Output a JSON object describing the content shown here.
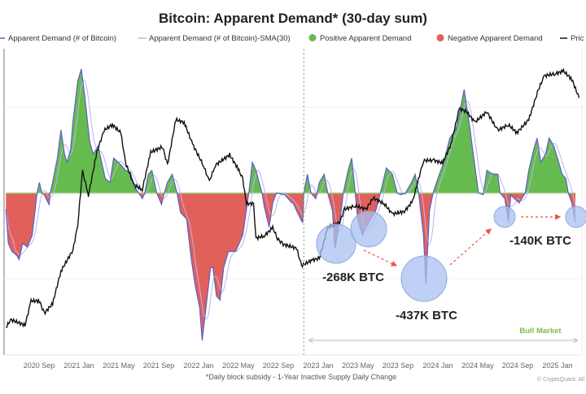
{
  "chart_data": {
    "type": "area",
    "title": "Bitcoin: Apparent Demand* (30-day sum)",
    "footnote": "*Daily block subsidy - 1-Year Inactive Supply Daily Change",
    "credit": "© CryptoQuant. All",
    "xlabel": "",
    "ylabel": "",
    "x_unit": "decimal year",
    "demand_unit": "K BTC",
    "xlim": [
      2020.39,
      2025.2
    ],
    "ylim": [
      -780,
      695
    ],
    "price_range": [
      7200,
      124000
    ],
    "price_scale": "log",
    "grid": true,
    "legend_placement": "top",
    "legend": [
      {
        "label": "Apparent Demand (# of Bitcoin)",
        "marker": "line",
        "color": "#5b5fc7"
      },
      {
        "label": "Apparent Demand (# of Bitcoin)-SMA(30)",
        "marker": "line",
        "color": "#b9b6e6"
      },
      {
        "label": "Positive Apparent Demand",
        "marker": "dot",
        "color": "#66bb4f"
      },
      {
        "label": "Negative Apparent Demand",
        "marker": "dot",
        "color": "#e2605a"
      },
      {
        "label": "Pric",
        "marker": "line",
        "color": "#111111"
      }
    ],
    "x_ticks": [
      {
        "label": "2020 Sep",
        "value": 2020.667
      },
      {
        "label": "2021 Jan",
        "value": 2021.0
      },
      {
        "label": "2021 May",
        "value": 2021.333
      },
      {
        "label": "2021 Sep",
        "value": 2021.667
      },
      {
        "label": "2022 Jan",
        "value": 2022.0
      },
      {
        "label": "2022 May",
        "value": 2022.333
      },
      {
        "label": "2022 Sep",
        "value": 2022.667
      },
      {
        "label": "2023 Jan",
        "value": 2023.0
      },
      {
        "label": "2023 May",
        "value": 2023.333
      },
      {
        "label": "2023 Sep",
        "value": 2023.667
      },
      {
        "label": "2024 Jan",
        "value": 2024.0
      },
      {
        "label": "2024 May",
        "value": 2024.333
      },
      {
        "label": "2024 Sep",
        "value": 2024.667
      },
      {
        "label": "2025 Jan",
        "value": 2025.0
      }
    ],
    "demand": [
      [
        2020.39,
        -78
      ],
      [
        2020.41,
        -242
      ],
      [
        2020.44,
        -281
      ],
      [
        2020.48,
        -300
      ],
      [
        2020.5,
        -320
      ],
      [
        2020.53,
        -242
      ],
      [
        2020.57,
        -261
      ],
      [
        2020.61,
        -203
      ],
      [
        2020.65,
        0
      ],
      [
        2020.67,
        51
      ],
      [
        2020.69,
        0
      ],
      [
        2020.71,
        -8
      ],
      [
        2020.75,
        -55
      ],
      [
        2020.76,
        0
      ],
      [
        2020.78,
        51
      ],
      [
        2020.82,
        168
      ],
      [
        2020.85,
        304
      ],
      [
        2020.88,
        187
      ],
      [
        2020.9,
        148
      ],
      [
        2020.93,
        207
      ],
      [
        2020.95,
        343
      ],
      [
        2020.99,
        538
      ],
      [
        2021.02,
        597
      ],
      [
        2021.05,
        460
      ],
      [
        2021.09,
        246
      ],
      [
        2021.12,
        187
      ],
      [
        2021.16,
        226
      ],
      [
        2021.19,
        148
      ],
      [
        2021.22,
        70
      ],
      [
        2021.26,
        51
      ],
      [
        2021.29,
        168
      ],
      [
        2021.33,
        148
      ],
      [
        2021.36,
        129
      ],
      [
        2021.39,
        109
      ],
      [
        2021.43,
        101
      ],
      [
        2021.46,
        31
      ],
      [
        2021.5,
        0
      ],
      [
        2021.53,
        -27
      ],
      [
        2021.55,
        0
      ],
      [
        2021.58,
        90
      ],
      [
        2021.61,
        109
      ],
      [
        2021.65,
        0
      ],
      [
        2021.67,
        -27
      ],
      [
        2021.69,
        -55
      ],
      [
        2021.71,
        -8
      ],
      [
        2021.74,
        51
      ],
      [
        2021.78,
        90
      ],
      [
        2021.82,
        0
      ],
      [
        2021.85,
        -94
      ],
      [
        2021.9,
        -125
      ],
      [
        2021.94,
        -320
      ],
      [
        2021.97,
        -437
      ],
      [
        2022.01,
        -554
      ],
      [
        2022.03,
        -710
      ],
      [
        2022.05,
        -612
      ],
      [
        2022.1,
        -359
      ],
      [
        2022.12,
        -359
      ],
      [
        2022.15,
        -495
      ],
      [
        2022.18,
        -515
      ],
      [
        2022.21,
        -359
      ],
      [
        2022.25,
        -281
      ],
      [
        2022.31,
        -281
      ],
      [
        2022.37,
        -203
      ],
      [
        2022.42,
        0
      ],
      [
        2022.45,
        148
      ],
      [
        2022.48,
        109
      ],
      [
        2022.53,
        0
      ],
      [
        2022.55,
        -66
      ],
      [
        2022.59,
        -164
      ],
      [
        2022.62,
        -47
      ],
      [
        2022.65,
        0
      ],
      [
        2022.72,
        -8
      ],
      [
        2022.78,
        -47
      ],
      [
        2022.79,
        -47
      ],
      [
        2022.82,
        -86
      ],
      [
        2022.87,
        -144
      ],
      [
        2022.88,
        0
      ],
      [
        2022.91,
        90
      ],
      [
        2022.94,
        0
      ],
      [
        2022.98,
        -27
      ],
      [
        2023.01,
        51
      ],
      [
        2023.05,
        90
      ],
      [
        2023.08,
        0
      ],
      [
        2023.12,
        -86
      ],
      [
        2023.14,
        -268
      ],
      [
        2023.16,
        -203
      ],
      [
        2023.18,
        -144
      ],
      [
        2023.21,
        0
      ],
      [
        2023.25,
        109
      ],
      [
        2023.28,
        168
      ],
      [
        2023.31,
        0
      ],
      [
        2023.33,
        -125
      ],
      [
        2023.37,
        -203
      ],
      [
        2023.4,
        -164
      ],
      [
        2023.44,
        -125
      ],
      [
        2023.48,
        -86
      ],
      [
        2023.52,
        0
      ],
      [
        2023.57,
        121
      ],
      [
        2023.62,
        90
      ],
      [
        2023.66,
        0
      ],
      [
        2023.69,
        -8
      ],
      [
        2023.73,
        0
      ],
      [
        2023.78,
        51
      ],
      [
        2023.81,
        90
      ],
      [
        2023.84,
        0
      ],
      [
        2023.88,
        -203
      ],
      [
        2023.9,
        -437
      ],
      [
        2023.93,
        -86
      ],
      [
        2023.96,
        0
      ],
      [
        2024.0,
        70
      ],
      [
        2024.05,
        148
      ],
      [
        2024.1,
        265
      ],
      [
        2024.15,
        304
      ],
      [
        2024.18,
        382
      ],
      [
        2024.22,
        499
      ],
      [
        2024.24,
        421
      ],
      [
        2024.27,
        304
      ],
      [
        2024.3,
        168
      ],
      [
        2024.34,
        0
      ],
      [
        2024.38,
        -8
      ],
      [
        2024.41,
        109
      ],
      [
        2024.46,
        90
      ],
      [
        2024.5,
        90
      ],
      [
        2024.52,
        0
      ],
      [
        2024.56,
        -27
      ],
      [
        2024.59,
        -140
      ],
      [
        2024.61,
        -8
      ],
      [
        2024.64,
        -27
      ],
      [
        2024.68,
        -47
      ],
      [
        2024.73,
        0
      ],
      [
        2024.76,
        109
      ],
      [
        2024.8,
        207
      ],
      [
        2024.83,
        265
      ],
      [
        2024.86,
        148
      ],
      [
        2024.9,
        187
      ],
      [
        2024.93,
        265
      ],
      [
        2024.97,
        226
      ],
      [
        2025.01,
        148
      ],
      [
        2025.04,
        90
      ],
      [
        2025.07,
        70
      ],
      [
        2025.09,
        0
      ],
      [
        2025.12,
        -47
      ],
      [
        2025.15,
        -140
      ]
    ],
    "price": [
      [
        2020.39,
        9300
      ],
      [
        2020.43,
        10000
      ],
      [
        2020.55,
        9500
      ],
      [
        2020.6,
        11900
      ],
      [
        2020.67,
        11900
      ],
      [
        2020.71,
        10600
      ],
      [
        2020.78,
        11600
      ],
      [
        2020.85,
        15700
      ],
      [
        2020.95,
        19100
      ],
      [
        2020.99,
        24000
      ],
      [
        2021.03,
        39800
      ],
      [
        2021.08,
        31800
      ],
      [
        2021.15,
        47400
      ],
      [
        2021.21,
        58100
      ],
      [
        2021.28,
        61200
      ],
      [
        2021.35,
        56800
      ],
      [
        2021.39,
        42900
      ],
      [
        2021.46,
        35000
      ],
      [
        2021.53,
        33500
      ],
      [
        2021.6,
        47400
      ],
      [
        2021.7,
        49900
      ],
      [
        2021.74,
        42000
      ],
      [
        2021.81,
        64100
      ],
      [
        2021.88,
        62600
      ],
      [
        2021.95,
        51100
      ],
      [
        2022.04,
        42000
      ],
      [
        2022.09,
        36100
      ],
      [
        2022.14,
        42000
      ],
      [
        2022.26,
        46300
      ],
      [
        2022.33,
        40700
      ],
      [
        2022.37,
        36900
      ],
      [
        2022.4,
        29400
      ],
      [
        2022.46,
        29400
      ],
      [
        2022.48,
        21300
      ],
      [
        2022.55,
        21800
      ],
      [
        2022.62,
        23500
      ],
      [
        2022.66,
        21300
      ],
      [
        2022.7,
        20200
      ],
      [
        2022.82,
        19400
      ],
      [
        2022.86,
        16500
      ],
      [
        2022.95,
        17400
      ],
      [
        2023.01,
        17700
      ],
      [
        2023.08,
        23500
      ],
      [
        2023.18,
        24700
      ],
      [
        2023.22,
        27900
      ],
      [
        2023.31,
        28800
      ],
      [
        2023.4,
        27900
      ],
      [
        2023.46,
        31000
      ],
      [
        2023.55,
        29400
      ],
      [
        2023.62,
        26700
      ],
      [
        2023.72,
        27300
      ],
      [
        2023.79,
        30100
      ],
      [
        2023.88,
        43900
      ],
      [
        2023.97,
        43900
      ],
      [
        2024.04,
        42900
      ],
      [
        2024.11,
        51100
      ],
      [
        2024.18,
        71200
      ],
      [
        2024.24,
        69100
      ],
      [
        2024.31,
        62600
      ],
      [
        2024.41,
        69100
      ],
      [
        2024.5,
        58100
      ],
      [
        2024.59,
        61200
      ],
      [
        2024.66,
        56800
      ],
      [
        2024.76,
        64100
      ],
      [
        2024.84,
        84700
      ],
      [
        2024.89,
        96300
      ],
      [
        2024.98,
        98400
      ],
      [
        2025.05,
        100700
      ],
      [
        2025.12,
        93400
      ],
      [
        2025.18,
        78500
      ]
    ],
    "annotations": [
      {
        "label": "-268K BTC"
      },
      {
        "label": "-437K BTC"
      },
      {
        "label": "-140K BTC"
      },
      {
        "label": "Bull Market",
        "color": "#7fbf3f"
      }
    ],
    "bull_market_start": 2022.88,
    "colors": {
      "positive": "#66bb4f",
      "negative": "#e2605a",
      "demand_line": "#5b5fc7",
      "sma_line": "#b9b6e6",
      "price_line": "#111111",
      "bubble": "#a9c0f2",
      "arrow": "#e8553f"
    }
  }
}
